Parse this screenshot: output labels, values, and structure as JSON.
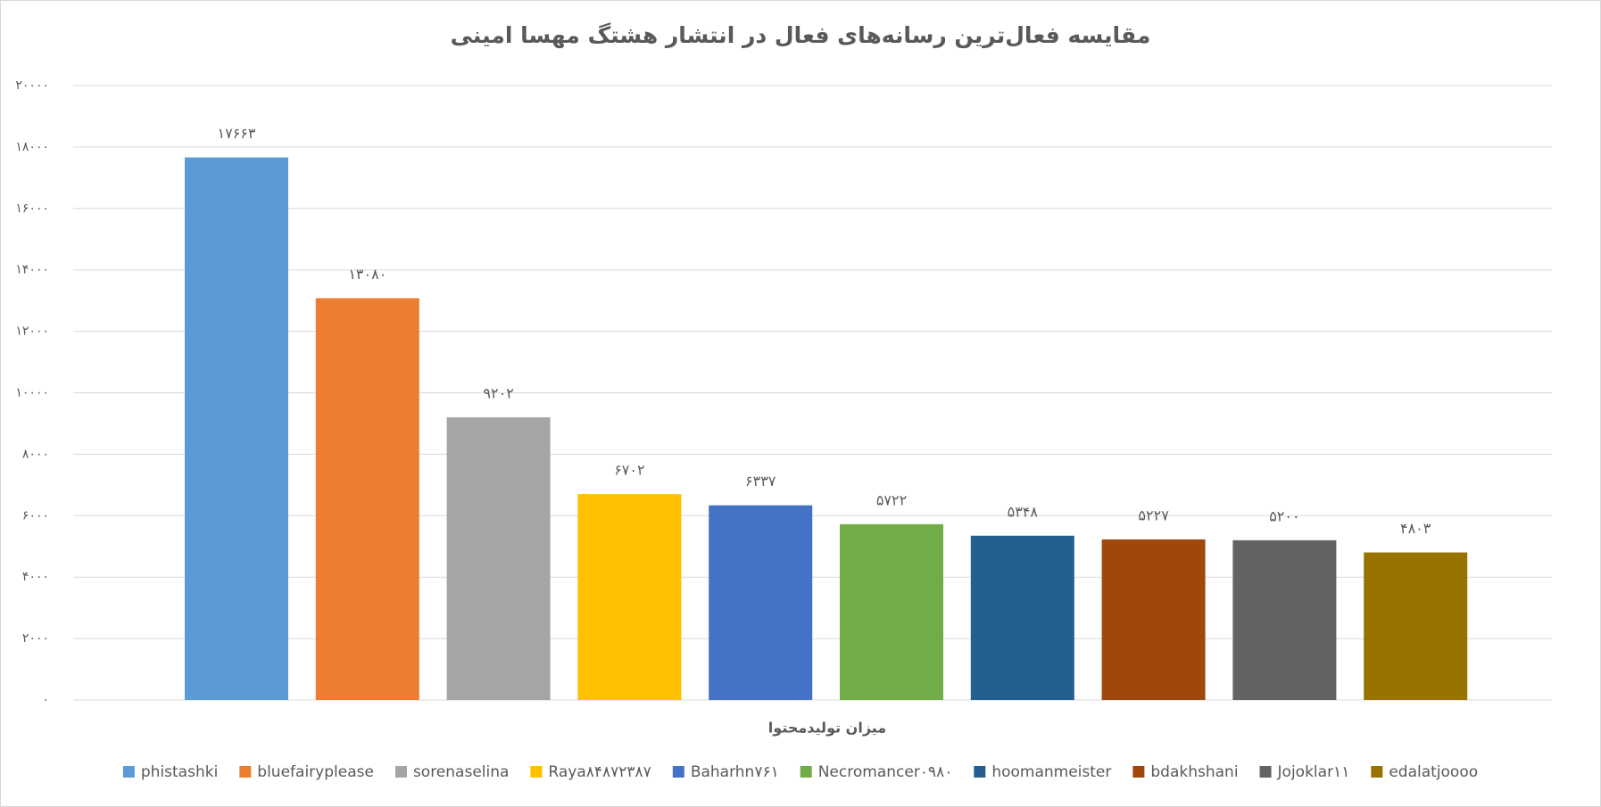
{
  "chart_data": {
    "type": "bar",
    "title": "مقایسه فعال‌ترین رسانه‌های فعال در انتشار هشتگ مهسا امینی",
    "x_label": "میزان تولیدمحتوا",
    "categories": [
      "phistashki",
      "bluefairyplease",
      "sorenaselina",
      "Raya۸۴۸۷۲۳۸۷",
      "Baharhn۷۶۱",
      "Necromancer۰۹۸۰",
      "hoomanmeister",
      "bdakhshani",
      "Jojoklar۱۱",
      "edalatjoooo"
    ],
    "values": [
      17663,
      13080,
      9202,
      6702,
      6337,
      5722,
      5348,
      5227,
      5200,
      4803
    ],
    "value_labels": [
      "۱۷۶۶۳",
      "۱۳۰۸۰",
      "۹۲۰۲",
      "۶۷۰۲",
      "۶۳۳۷",
      "۵۷۲۲",
      "۵۳۴۸",
      "۵۲۲۷",
      "۵۲۰۰",
      "۴۸۰۳"
    ],
    "colors": [
      "#5b9bd5",
      "#ed7d31",
      "#a5a5a5",
      "#ffc000",
      "#4472c4",
      "#70ad47",
      "#255e91",
      "#9e480e",
      "#636363",
      "#997300"
    ],
    "ylim": [
      0,
      20000
    ],
    "yticks": [
      {
        "value": 0,
        "label": "۰"
      },
      {
        "value": 2000,
        "label": "۲۰۰۰"
      },
      {
        "value": 4000,
        "label": "۴۰۰۰"
      },
      {
        "value": 6000,
        "label": "۶۰۰۰"
      },
      {
        "value": 8000,
        "label": "۸۰۰۰"
      },
      {
        "value": 10000,
        "label": "۱۰۰۰۰"
      },
      {
        "value": 12000,
        "label": "۱۲۰۰۰"
      },
      {
        "value": 14000,
        "label": "۱۴۰۰۰"
      },
      {
        "value": 16000,
        "label": "۱۶۰۰۰"
      },
      {
        "value": 18000,
        "label": "۱۸۰۰۰"
      },
      {
        "value": 20000,
        "label": "۲۰۰۰۰"
      }
    ],
    "grid": true,
    "legend": "bottom"
  }
}
